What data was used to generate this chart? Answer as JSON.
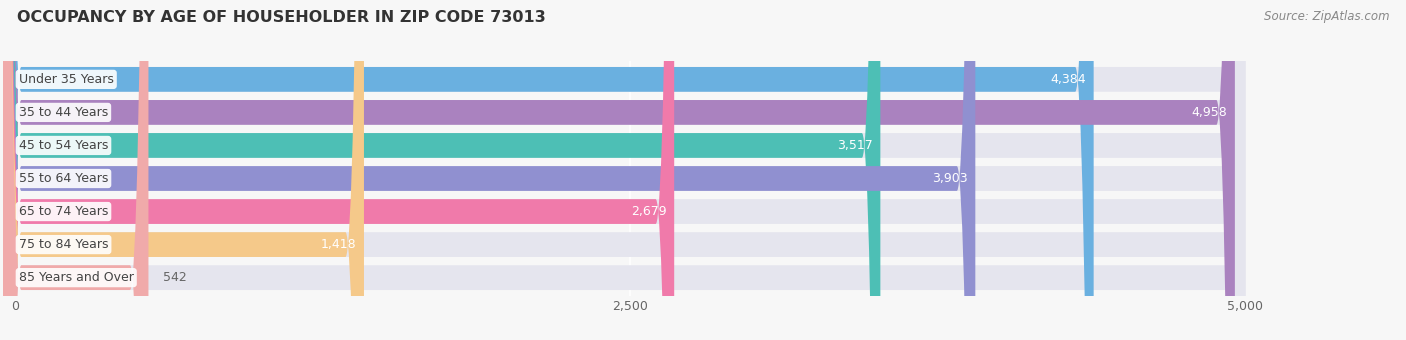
{
  "title": "OCCUPANCY BY AGE OF HOUSEHOLDER IN ZIP CODE 73013",
  "source": "Source: ZipAtlas.com",
  "categories": [
    "Under 35 Years",
    "35 to 44 Years",
    "45 to 54 Years",
    "55 to 64 Years",
    "65 to 74 Years",
    "75 to 84 Years",
    "85 Years and Over"
  ],
  "values": [
    4384,
    4958,
    3517,
    3903,
    2679,
    1418,
    542
  ],
  "bar_colors": [
    "#6ab0e0",
    "#aa82bf",
    "#4dbfb5",
    "#9090d0",
    "#f07aaa",
    "#f5c98a",
    "#f0aaaa"
  ],
  "xlim_max": 5000,
  "xticks": [
    0,
    2500,
    5000
  ],
  "background_color": "#f7f7f7",
  "bar_bg_color": "#e5e5ee",
  "title_fontsize": 11.5,
  "label_fontsize": 9,
  "value_fontsize": 9,
  "source_fontsize": 8.5
}
